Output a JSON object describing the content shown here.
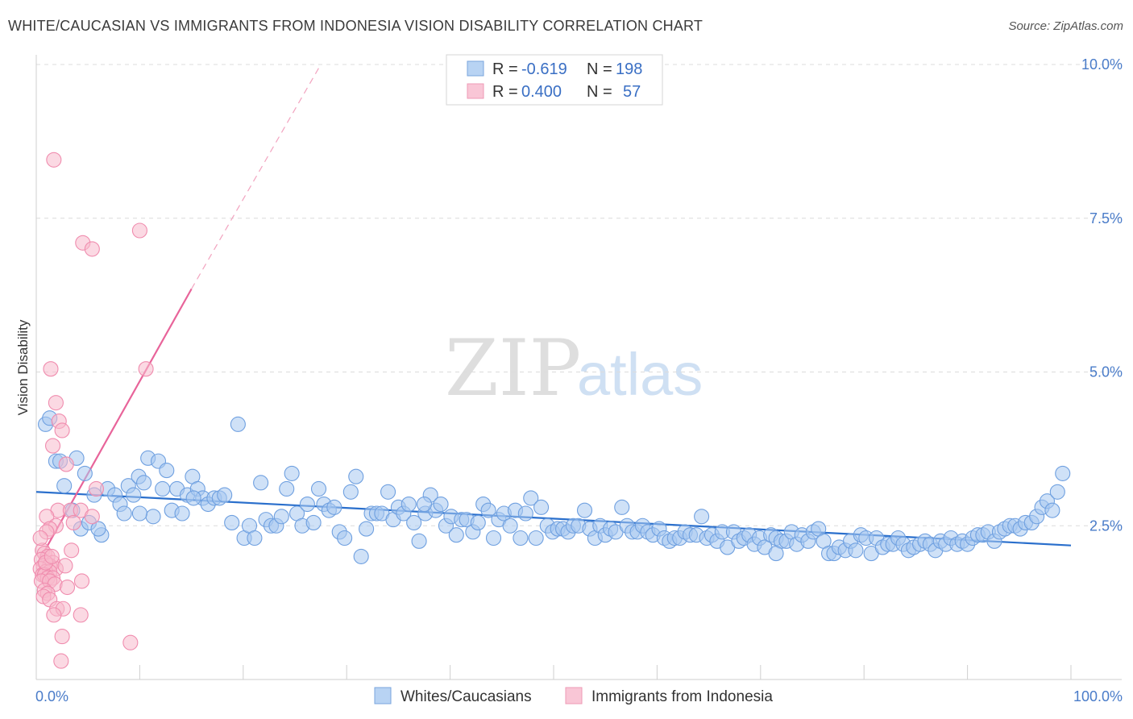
{
  "title": "WHITE/CAUCASIAN VS IMMIGRANTS FROM INDONESIA VISION DISABILITY CORRELATION CHART",
  "source": "Source: ZipAtlas.com",
  "watermark": {
    "part1": "ZIP",
    "part2": "atlas"
  },
  "legend": {
    "rows": [
      {
        "r_label": "R =",
        "r_value": "-0.619",
        "n_label": "N =",
        "n_value": "198",
        "color": "#a8c8f0"
      },
      {
        "r_label": "R =",
        "r_value": "0.400",
        "n_label": "N =",
        "n_value": "57",
        "color": "#f7b9cc"
      }
    ]
  },
  "bottom_legend": [
    "Whites/Caucasians",
    "Immigrants from Indonesia"
  ],
  "chart_data": {
    "type": "scatter",
    "title": "WHITE/CAUCASIAN VS IMMIGRANTS FROM INDONESIA VISION DISABILITY CORRELATION CHART",
    "xlabel": "",
    "ylabel": "Vision Disability",
    "xlim": [
      0,
      100
    ],
    "ylim": [
      0,
      10.5
    ],
    "x_tick_labels": [
      "0.0%",
      "100.0%"
    ],
    "y_ticks": [
      2.5,
      5.0,
      7.5,
      10.0
    ],
    "y_tick_labels": [
      "2.5%",
      "5.0%",
      "7.5%",
      "10.0%"
    ],
    "grid": true,
    "legend_position": "top-center",
    "colors": {
      "blue": "#6fa0e0",
      "pink": "#f08cae",
      "blue_line": "#2a6fcc",
      "pink_line": "#e8649a"
    },
    "series": [
      {
        "name": "Whites/Caucasians",
        "r": -0.619,
        "n": 198,
        "trend": {
          "x": [
            0,
            100
          ],
          "y": [
            3.05,
            2.18
          ]
        },
        "points": [
          [
            0.9,
            4.15
          ],
          [
            1.3,
            4.25
          ],
          [
            1.9,
            3.55
          ],
          [
            2.3,
            3.55
          ],
          [
            2.7,
            3.15
          ],
          [
            3.5,
            2.75
          ],
          [
            3.9,
            3.6
          ],
          [
            4.3,
            2.45
          ],
          [
            4.7,
            3.35
          ],
          [
            5.1,
            2.55
          ],
          [
            5.6,
            3.0
          ],
          [
            6.3,
            2.35
          ],
          [
            6.9,
            3.1
          ],
          [
            7.6,
            3.0
          ],
          [
            8.1,
            2.85
          ],
          [
            8.5,
            2.7
          ],
          [
            8.9,
            3.15
          ],
          [
            9.4,
            3.0
          ],
          [
            9.9,
            3.3
          ],
          [
            10.4,
            3.2
          ],
          [
            10.8,
            3.6
          ],
          [
            11.3,
            2.65
          ],
          [
            11.8,
            3.55
          ],
          [
            12.2,
            3.1
          ],
          [
            12.6,
            3.4
          ],
          [
            13.1,
            2.75
          ],
          [
            13.6,
            3.1
          ],
          [
            14.1,
            2.7
          ],
          [
            14.6,
            3.0
          ],
          [
            15.1,
            3.3
          ],
          [
            15.6,
            3.1
          ],
          [
            16.1,
            2.95
          ],
          [
            16.6,
            2.85
          ],
          [
            17.2,
            2.95
          ],
          [
            17.7,
            2.95
          ],
          [
            18.2,
            3.0
          ],
          [
            18.9,
            2.55
          ],
          [
            19.5,
            4.15
          ],
          [
            20.1,
            2.3
          ],
          [
            20.6,
            2.5
          ],
          [
            21.1,
            2.3
          ],
          [
            21.7,
            3.2
          ],
          [
            22.2,
            2.6
          ],
          [
            22.7,
            2.5
          ],
          [
            23.2,
            2.5
          ],
          [
            23.7,
            2.65
          ],
          [
            24.2,
            3.1
          ],
          [
            24.7,
            3.35
          ],
          [
            25.2,
            2.7
          ],
          [
            25.7,
            2.5
          ],
          [
            26.2,
            2.85
          ],
          [
            26.8,
            2.55
          ],
          [
            27.3,
            3.1
          ],
          [
            27.8,
            2.85
          ],
          [
            28.3,
            2.75
          ],
          [
            28.8,
            2.8
          ],
          [
            29.3,
            2.4
          ],
          [
            29.8,
            2.3
          ],
          [
            30.4,
            3.05
          ],
          [
            30.9,
            3.3
          ],
          [
            31.4,
            2.0
          ],
          [
            31.9,
            2.45
          ],
          [
            32.4,
            2.7
          ],
          [
            32.9,
            2.7
          ],
          [
            33.4,
            2.7
          ],
          [
            34.0,
            3.05
          ],
          [
            34.5,
            2.6
          ],
          [
            35.0,
            2.8
          ],
          [
            35.5,
            2.7
          ],
          [
            36.0,
            2.85
          ],
          [
            36.5,
            2.55
          ],
          [
            37.0,
            2.25
          ],
          [
            37.6,
            2.7
          ],
          [
            38.1,
            3.0
          ],
          [
            38.6,
            2.75
          ],
          [
            39.1,
            2.85
          ],
          [
            39.6,
            2.5
          ],
          [
            40.1,
            2.65
          ],
          [
            40.6,
            2.35
          ],
          [
            41.1,
            2.6
          ],
          [
            41.6,
            2.6
          ],
          [
            42.2,
            2.4
          ],
          [
            42.7,
            2.55
          ],
          [
            43.2,
            2.85
          ],
          [
            43.7,
            2.75
          ],
          [
            44.2,
            2.3
          ],
          [
            44.7,
            2.6
          ],
          [
            45.2,
            2.7
          ],
          [
            45.8,
            2.5
          ],
          [
            46.3,
            2.75
          ],
          [
            46.8,
            2.3
          ],
          [
            47.3,
            2.7
          ],
          [
            47.8,
            2.95
          ],
          [
            48.3,
            2.3
          ],
          [
            48.8,
            2.8
          ],
          [
            49.4,
            2.5
          ],
          [
            49.9,
            2.4
          ],
          [
            50.4,
            2.45
          ],
          [
            50.9,
            2.45
          ],
          [
            51.4,
            2.4
          ],
          [
            51.9,
            2.5
          ],
          [
            52.4,
            2.5
          ],
          [
            53.0,
            2.75
          ],
          [
            53.5,
            2.45
          ],
          [
            54.0,
            2.3
          ],
          [
            54.5,
            2.5
          ],
          [
            55.0,
            2.35
          ],
          [
            55.5,
            2.45
          ],
          [
            56.0,
            2.4
          ],
          [
            56.6,
            2.8
          ],
          [
            57.1,
            2.5
          ],
          [
            57.6,
            2.4
          ],
          [
            58.1,
            2.4
          ],
          [
            58.6,
            2.5
          ],
          [
            59.1,
            2.4
          ],
          [
            59.6,
            2.35
          ],
          [
            60.2,
            2.45
          ],
          [
            60.7,
            2.3
          ],
          [
            61.2,
            2.25
          ],
          [
            61.7,
            2.3
          ],
          [
            62.2,
            2.3
          ],
          [
            62.7,
            2.4
          ],
          [
            63.2,
            2.35
          ],
          [
            63.8,
            2.35
          ],
          [
            64.3,
            2.65
          ],
          [
            64.8,
            2.3
          ],
          [
            65.3,
            2.35
          ],
          [
            65.8,
            2.25
          ],
          [
            66.3,
            2.4
          ],
          [
            66.8,
            2.15
          ],
          [
            67.4,
            2.4
          ],
          [
            67.9,
            2.25
          ],
          [
            68.4,
            2.3
          ],
          [
            68.9,
            2.35
          ],
          [
            69.4,
            2.2
          ],
          [
            69.9,
            2.3
          ],
          [
            70.4,
            2.15
          ],
          [
            71.0,
            2.35
          ],
          [
            71.5,
            2.3
          ],
          [
            72.0,
            2.25
          ],
          [
            72.5,
            2.25
          ],
          [
            73.0,
            2.4
          ],
          [
            73.5,
            2.2
          ],
          [
            74.0,
            2.35
          ],
          [
            74.6,
            2.25
          ],
          [
            75.1,
            2.4
          ],
          [
            75.6,
            2.45
          ],
          [
            76.1,
            2.25
          ],
          [
            76.6,
            2.05
          ],
          [
            77.1,
            2.05
          ],
          [
            77.6,
            2.15
          ],
          [
            78.2,
            2.1
          ],
          [
            78.7,
            2.25
          ],
          [
            79.2,
            2.1
          ],
          [
            79.7,
            2.35
          ],
          [
            80.2,
            2.3
          ],
          [
            80.7,
            2.05
          ],
          [
            81.2,
            2.3
          ],
          [
            81.8,
            2.15
          ],
          [
            82.3,
            2.2
          ],
          [
            82.8,
            2.2
          ],
          [
            83.3,
            2.3
          ],
          [
            83.8,
            2.2
          ],
          [
            84.3,
            2.1
          ],
          [
            84.8,
            2.15
          ],
          [
            85.4,
            2.2
          ],
          [
            85.9,
            2.25
          ],
          [
            86.4,
            2.2
          ],
          [
            86.9,
            2.1
          ],
          [
            87.4,
            2.25
          ],
          [
            87.9,
            2.2
          ],
          [
            88.4,
            2.3
          ],
          [
            89.0,
            2.2
          ],
          [
            89.5,
            2.25
          ],
          [
            90.0,
            2.2
          ],
          [
            90.5,
            2.3
          ],
          [
            91.0,
            2.35
          ],
          [
            91.5,
            2.35
          ],
          [
            92.0,
            2.4
          ],
          [
            92.6,
            2.25
          ],
          [
            93.1,
            2.4
          ],
          [
            93.6,
            2.45
          ],
          [
            94.1,
            2.5
          ],
          [
            94.6,
            2.5
          ],
          [
            95.1,
            2.45
          ],
          [
            95.6,
            2.55
          ],
          [
            96.2,
            2.55
          ],
          [
            96.7,
            2.65
          ],
          [
            97.2,
            2.8
          ],
          [
            97.7,
            2.9
          ],
          [
            98.2,
            2.75
          ],
          [
            98.7,
            3.05
          ],
          [
            99.2,
            3.35
          ],
          [
            37.5,
            2.85
          ],
          [
            15.2,
            2.95
          ],
          [
            10.0,
            2.7
          ],
          [
            6.0,
            2.45
          ],
          [
            71.5,
            2.05
          ]
        ]
      },
      {
        "name": "Immigrants from Indonesia",
        "r": 0.4,
        "n": 57,
        "trend": {
          "x": [
            0,
            15.0
          ],
          "y": [
            1.85,
            6.35
          ],
          "dashed_to": [
            27.5,
            10.0
          ]
        },
        "points": [
          [
            1.7,
            8.45
          ],
          [
            10.0,
            7.3
          ],
          [
            4.5,
            7.1
          ],
          [
            5.4,
            7.0
          ],
          [
            10.6,
            5.05
          ],
          [
            1.4,
            5.05
          ],
          [
            1.9,
            4.5
          ],
          [
            2.2,
            4.2
          ],
          [
            2.5,
            4.05
          ],
          [
            1.6,
            3.8
          ],
          [
            2.9,
            3.5
          ],
          [
            5.8,
            3.1
          ],
          [
            2.1,
            2.75
          ],
          [
            3.3,
            2.75
          ],
          [
            4.3,
            2.75
          ],
          [
            1.0,
            2.65
          ],
          [
            3.6,
            2.55
          ],
          [
            1.9,
            2.5
          ],
          [
            1.3,
            2.45
          ],
          [
            1.0,
            2.4
          ],
          [
            5.4,
            2.65
          ],
          [
            0.6,
            2.1
          ],
          [
            0.8,
            2.05
          ],
          [
            3.4,
            2.1
          ],
          [
            1.1,
            2.0
          ],
          [
            0.5,
            1.95
          ],
          [
            1.6,
            1.9
          ],
          [
            0.7,
            1.85
          ],
          [
            1.3,
            1.85
          ],
          [
            1.9,
            1.8
          ],
          [
            0.4,
            1.8
          ],
          [
            0.9,
            1.75
          ],
          [
            1.3,
            1.75
          ],
          [
            0.6,
            1.7
          ],
          [
            0.8,
            1.7
          ],
          [
            1.1,
            1.65
          ],
          [
            1.6,
            1.65
          ],
          [
            0.5,
            1.6
          ],
          [
            1.3,
            1.6
          ],
          [
            1.8,
            1.55
          ],
          [
            4.4,
            1.6
          ],
          [
            3.0,
            1.5
          ],
          [
            0.8,
            1.45
          ],
          [
            1.1,
            1.4
          ],
          [
            0.7,
            1.35
          ],
          [
            1.3,
            1.3
          ],
          [
            2.0,
            1.15
          ],
          [
            2.6,
            1.15
          ],
          [
            1.7,
            1.05
          ],
          [
            4.3,
            1.05
          ],
          [
            2.5,
            0.7
          ],
          [
            9.1,
            0.6
          ],
          [
            2.4,
            0.3
          ],
          [
            0.9,
            1.9
          ],
          [
            1.5,
            2.0
          ],
          [
            2.8,
            1.85
          ],
          [
            0.4,
            2.3
          ]
        ]
      }
    ]
  }
}
